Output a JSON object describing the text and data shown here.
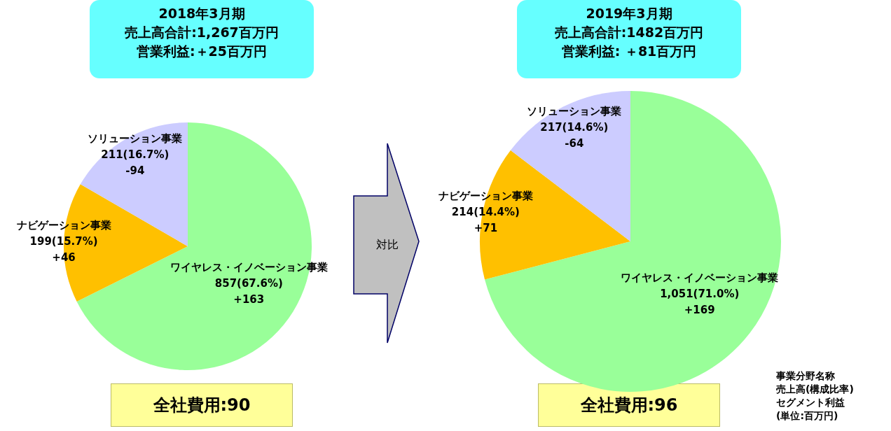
{
  "chart_data": [
    {
      "type": "pie",
      "title": "2018年3月期",
      "subtitle": "売上高合計:1,267百万円",
      "categories": [
        "ワイヤレス・イノベーション事業",
        "ナビゲーション事業",
        "ソリューション事業"
      ],
      "values": [
        857,
        199,
        211
      ],
      "colors": [
        "#99ff99",
        "#ffc000",
        "#ccccff"
      ],
      "value_labels": [
        "857(67.6%)\n+163",
        "199(15.7%)\n+46",
        "211(16.7%)\n-94"
      ],
      "annotations": [
        "営業利益:＋25百万円",
        "全社費用:90",
        "対比"
      ],
      "legend": false
    },
    {
      "type": "pie",
      "title": "2019年3月期",
      "subtitle": "売上高合計:1482百万円",
      "categories": [
        "ワイヤレス・イノベーション事業",
        "ナビゲーション事業",
        "ソリューション事業"
      ],
      "values": [
        1051,
        214,
        217
      ],
      "colors": [
        "#99ff99",
        "#ffc000",
        "#ccccff"
      ],
      "value_labels": [
        "1,051(71.0%)\n+169",
        "214(14.4%)\n+71",
        "217(14.6%)\n-64"
      ],
      "annotations": [
        "営業利益: ＋81百万円",
        "全社費用:96",
        "事業分野名称",
        "売上高(構成比率)",
        "セグメント利益",
        "(単位:百万円)"
      ],
      "legend": false
    }
  ]
}
